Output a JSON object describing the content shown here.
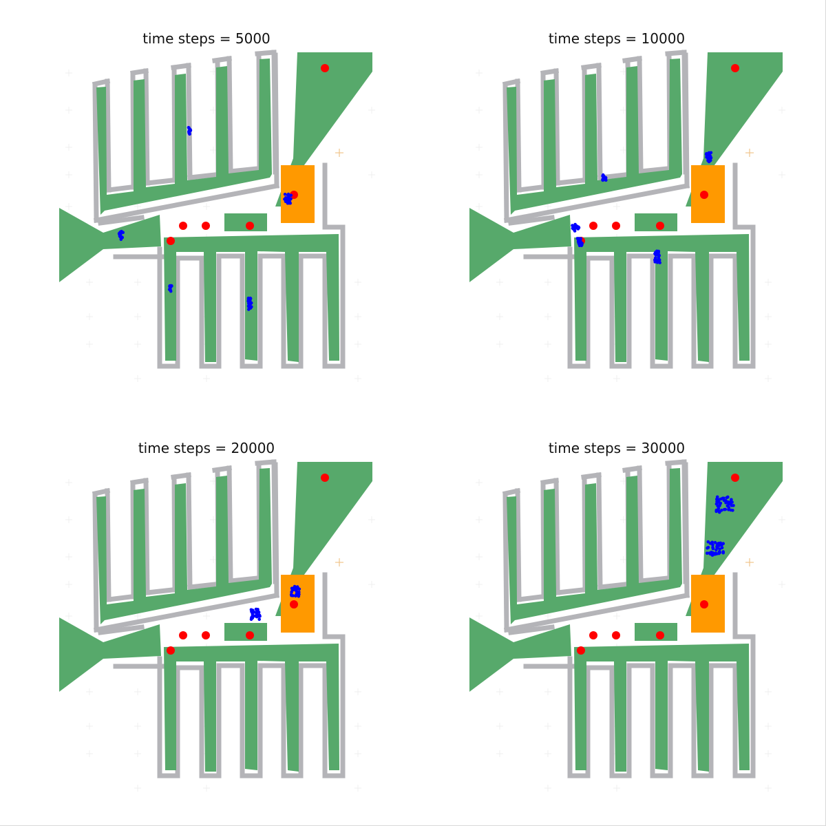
{
  "colors": {
    "floor": "#57a96b",
    "wall": "#b4b4b8",
    "goal_area": "#ff9900",
    "target": "#ff0000",
    "agent": "#0000ff",
    "marker": "#f0c48a"
  },
  "panels": [
    {
      "title": "time steps = 5000",
      "clusters": [
        [
          275,
          190,
          4,
          10
        ],
        [
          176,
          342,
          6,
          12
        ],
        [
          418,
          289,
          10,
          14
        ],
        [
          248,
          419,
          4,
          9
        ],
        [
          363,
          441,
          5,
          18
        ]
      ]
    },
    {
      "title": "time steps = 10000",
      "clusters": [
        [
          434,
          228,
          8,
          14
        ],
        [
          282,
          258,
          6,
          8
        ],
        [
          240,
          331,
          10,
          10
        ],
        [
          246,
          351,
          8,
          12
        ],
        [
          359,
          373,
          8,
          18
        ]
      ]
    },
    {
      "title": "time steps = 20000",
      "clusters": [
        [
          371,
          298,
          14,
          16
        ],
        [
          429,
          264,
          12,
          16
        ]
      ]
    },
    {
      "title": "time steps = 30000",
      "clusters": [
        [
          457,
          733,
          26,
          24
        ],
        [
          443,
          797,
          24,
          20
        ]
      ]
    }
  ]
}
